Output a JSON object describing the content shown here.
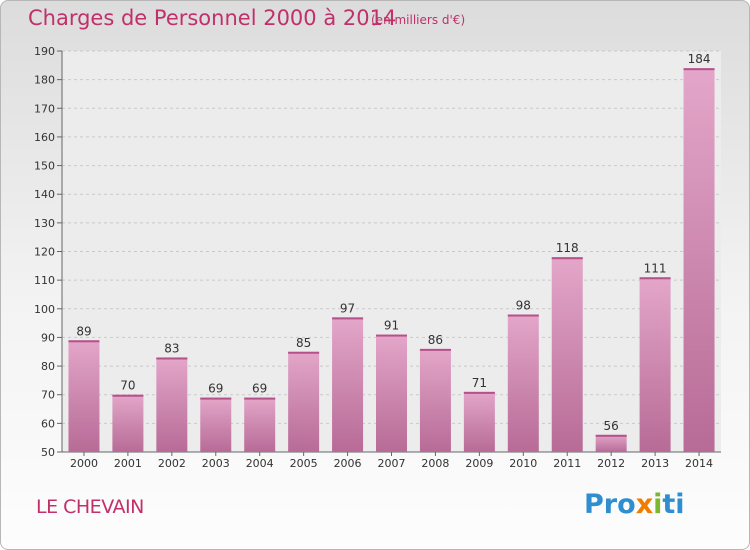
{
  "header": {
    "title": "Charges de Personnel 2000 à 2014",
    "subtitle": "(en milliers d'€)"
  },
  "footer": {
    "location": "LE CHEVAIN",
    "logo_text": "Proxiti"
  },
  "colors": {
    "accent": "#c1306a",
    "bar_top": "#e3a6c9",
    "bar_bottom": "#b76b96",
    "logo": [
      "#2e8ecf",
      "#2e8ecf",
      "#2e8ecf",
      "#f07d00",
      "#7cb82f",
      "#2e8ecf",
      "#2e8ecf"
    ]
  },
  "chart_data": {
    "type": "bar",
    "categories": [
      "2000",
      "2001",
      "2002",
      "2003",
      "2004",
      "2005",
      "2006",
      "2007",
      "2008",
      "2009",
      "2010",
      "2011",
      "2012",
      "2013",
      "2014"
    ],
    "values": [
      89,
      70,
      83,
      69,
      69,
      85,
      97,
      91,
      86,
      71,
      98,
      118,
      56,
      111,
      184
    ],
    "ylim": [
      50,
      190
    ],
    "yticks": [
      50,
      60,
      70,
      80,
      90,
      100,
      110,
      120,
      130,
      140,
      150,
      160,
      170,
      180,
      190
    ],
    "grid": true,
    "xlabel": "",
    "ylabel": ""
  }
}
